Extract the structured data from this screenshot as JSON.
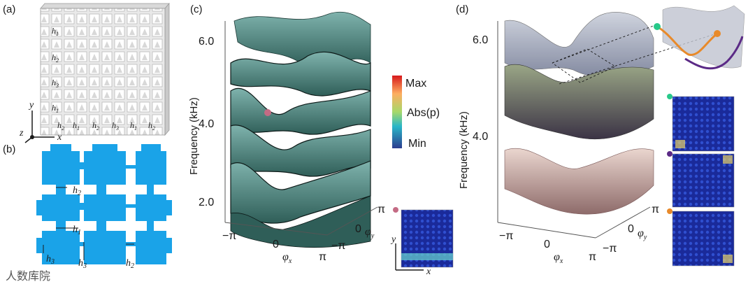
{
  "panels": {
    "a": {
      "label": "(a)",
      "axis_y": "y",
      "axis_x": "x",
      "axis_z": "z",
      "h_labels": [
        "h1",
        "h2",
        "h3"
      ]
    },
    "b": {
      "label": "(b)",
      "h1": "h",
      "h1_sub": "1",
      "h2": "h",
      "h2_sub": "2",
      "h3": "h",
      "h3_sub": "3"
    },
    "c": {
      "label": "(c)",
      "ylabel": "Frequency (kHz)",
      "yticks": [
        "6.0",
        "4.0",
        "2.0"
      ],
      "xticks": [
        "−π",
        "0",
        "π"
      ],
      "xlabel": "φ",
      "xlabel_sub": "x",
      "ytick_kx": [
        "−π",
        "0",
        "π"
      ],
      "ylabel_ky": "φ",
      "ylabel_ky_sub": "y",
      "colorbar": {
        "max": "Max",
        "mid": "Abs(p)",
        "min": "Min"
      },
      "inset_axis_y": "y",
      "inset_axis_x": "x"
    },
    "d": {
      "label": "(d)",
      "ylabel": "Frequency (kHz)",
      "yticks": [
        "6.0",
        "4.0"
      ],
      "xticks": [
        "−π",
        "0",
        "π"
      ],
      "xlabel": "φ",
      "xlabel_sub": "x",
      "ytick_ky": [
        "−π",
        "0",
        "π"
      ],
      "ylabel_ky": "φ",
      "ylabel_ky_sub": "y"
    }
  },
  "watermark": "人数库院",
  "colors": {
    "band": "#3d6f6a",
    "bandLight": "#6fa9a2",
    "structure": "#1aa3e8",
    "green_dot": "#28c98a",
    "purple_dot": "#5b2a86",
    "orange_dot": "#e88a2a",
    "pink_dot": "#c46b84"
  }
}
